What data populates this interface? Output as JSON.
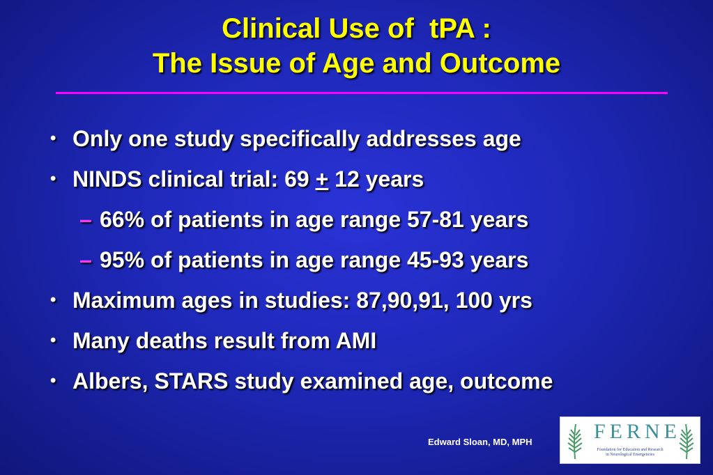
{
  "title": {
    "line1": "Clinical Use of  tPA :",
    "line2": "The Issue of Age and Outcome"
  },
  "bullets": [
    {
      "level": 1,
      "text": "Only one study specifically addresses age"
    },
    {
      "level": 1,
      "text_before": "NINDS clinical trial:  69 ",
      "symbol": "+",
      "text_after": " 12 years"
    },
    {
      "level": 2,
      "text": "66% of patients in age range 57-81 years"
    },
    {
      "level": 2,
      "text": "95% of patients in age range 45-93 years"
    },
    {
      "level": 1,
      "text": "Maximum ages in studies:  87,90,91, 100 yrs"
    },
    {
      "level": 1,
      "text": "Many deaths result from AMI"
    },
    {
      "level": 1,
      "text": "Albers, STARS study examined age, outcome"
    }
  ],
  "markers": {
    "level1": "•",
    "level2": "–"
  },
  "footer": {
    "author": "Edward Sloan, MD, MPH"
  },
  "logo": {
    "wordmark": "FERNE",
    "subtitle_line1": "Foundation for Education and Research",
    "subtitle_line2": "in Neurological Emergencies"
  },
  "colors": {
    "title": "#ffff00",
    "rule": "#ff00ff",
    "body_text": "#ffffff",
    "background": "#1e28b8"
  }
}
